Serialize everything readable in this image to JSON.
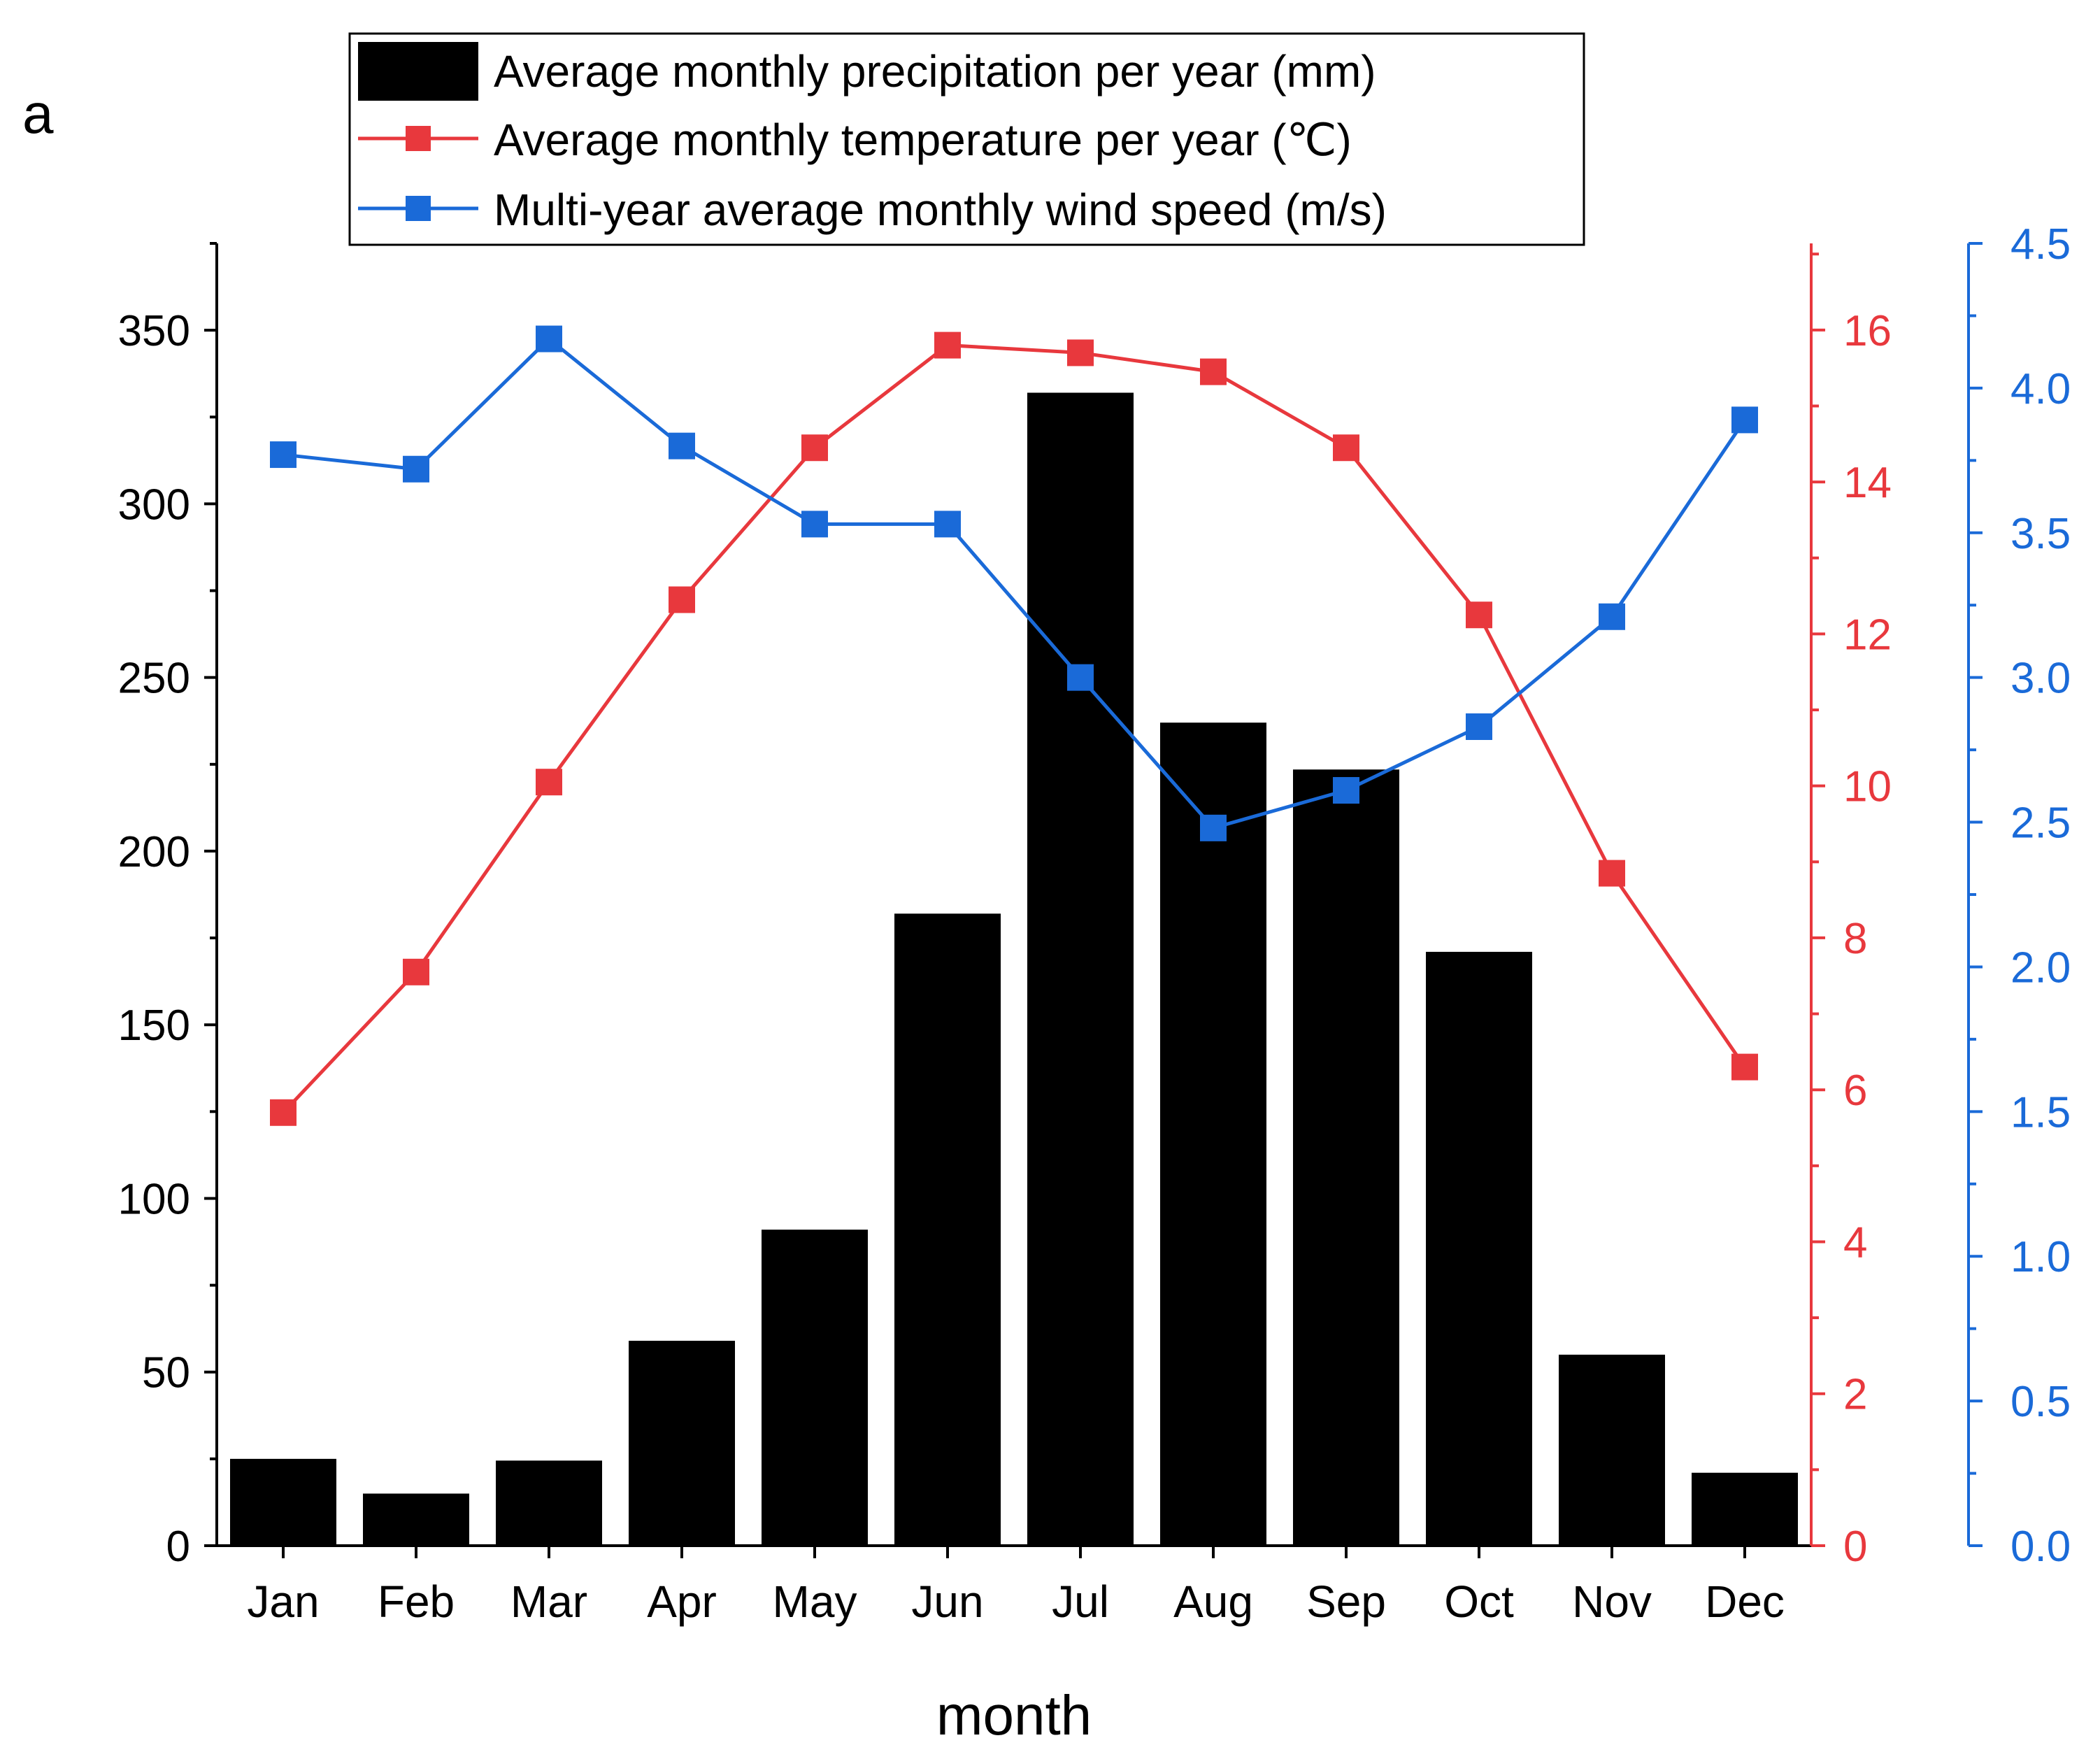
{
  "panel_label": "a",
  "colors": {
    "precipitation": "#000000",
    "temperature": "#e8383d",
    "wind": "#1a6ad8"
  },
  "legend": {
    "precipitation": "Average monthly precipitation per year (mm)",
    "temperature": "Average monthly temperature per year (℃)",
    "wind": "Multi-year average monthly wind speed (m/s)"
  },
  "chart_data": {
    "type": "bar+line",
    "categories": [
      "Jan",
      "Feb",
      "Mar",
      "Apr",
      "May",
      "Jun",
      "Jul",
      "Aug",
      "Sep",
      "Oct",
      "Nov",
      "Dec"
    ],
    "xlabel": "month",
    "series": [
      {
        "name": "Average monthly precipitation per year (mm)",
        "type": "bar",
        "axis": "left",
        "values": [
          25,
          15,
          24.5,
          59,
          91,
          182,
          332,
          237,
          223.5,
          171,
          55,
          21
        ]
      },
      {
        "name": "Average monthly temperature per year (℃)",
        "type": "line",
        "axis": "right-inner",
        "values": [
          5.7,
          7.55,
          10.05,
          12.45,
          14.45,
          15.8,
          15.7,
          15.45,
          14.45,
          12.25,
          8.85,
          6.3
        ]
      },
      {
        "name": "Multi-year average monthly wind speed (m/s)",
        "type": "line",
        "axis": "right-outer",
        "values": [
          3.77,
          3.72,
          4.17,
          3.8,
          3.53,
          3.53,
          3.0,
          2.48,
          2.61,
          2.83,
          3.21,
          3.89
        ]
      }
    ],
    "axes": {
      "left": {
        "ylim": [
          0,
          375
        ],
        "ticks": [
          0,
          50,
          100,
          150,
          200,
          250,
          300,
          350
        ]
      },
      "right_inner": {
        "ylim": [
          0,
          17.14
        ],
        "ticks": [
          0,
          2,
          4,
          6,
          8,
          10,
          12,
          14,
          16
        ]
      },
      "right_outer": {
        "ylim": [
          0,
          4.5
        ],
        "ticks": [
          "0.0",
          "0.5",
          "1.0",
          "1.5",
          "2.0",
          "2.5",
          "3.0",
          "3.5",
          "4.0",
          "4.5"
        ]
      }
    }
  }
}
